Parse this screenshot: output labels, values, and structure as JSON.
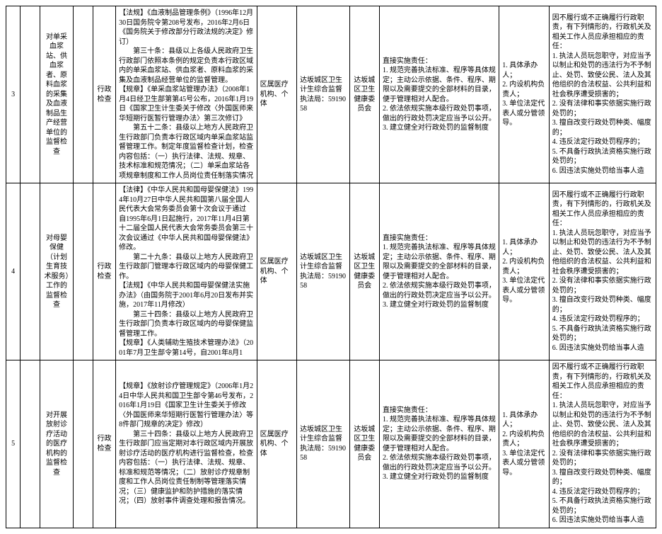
{
  "rows": [
    {
      "idx": "3",
      "colA": "",
      "colB": "对单采血浆站、供血浆者、原料血浆的采集及血液制品生产经营单位的监督检查",
      "colC": "",
      "colD": "行政检查",
      "colE": "【法规】《血液制品管理条例》（1996年12月30日国务院令第208号发布，2016年2月6日《国务院关于修改部分行政法规的决定》修订）\n　　第三十条：县级以上各级人民政府卫生行政部门依照本条例的规定负责本行政区域内的单采血浆站、供血浆者、原料血浆的采集及血液制品经营单位的监督管理。\n【规章】《单采血浆站管理办法》（2008年1月4日经卫生部第第45号公布，2016年1月19日《国家卫生计生委关于修改〈外国医师来华短期行医暂行管理办法〉第三次修订》\n　　第五十二条：县级以上地方人民政府卫生行政部门负责本行政区域内单采血浆站监督管理工作。制定年度监督检查计划，检查内容包括：（一）执行法律、法规、规章、技术标准和规范情况；（二）单采血浆站各项规章制度和工作人员岗位责任制落实情况",
      "colF": "区属医疗机构、个体",
      "colG": "达坂城区卫生计生综合监督执法局：5919058",
      "colH": "达坂城区卫生健康委员会",
      "colI": "直接实施责任：\n1. 规范完善执法标准、程序等具体规定；主动公示依据、条件、程序、期限以及需要提交的全部材料的目录，便于管理相对人配合。\n2. 依法依规实施本级行政处罚事项，做出的行政处罚决定应当予以公开。\n3. 建立健全对行政处罚的监督制度",
      "colJ": "1. 具体承办人；\n2. 内设机构负责人；\n3. 单位法定代表人或分管领导。",
      "colK": "因不履行或不正确履行行政职责，有下列情形的，行政机关及相关工作人员应承担相应的责任：\n1. 执法人员玩忽职守，对应当予以制止和处罚的违法行为不予制止、处罚、致使公民、法人及其他组织的合法权益、公共利益和社会秩序遭受损害的；\n2. 没有法律和事实依据实施行政处罚的；\n3. 擅自改变行政处罚种类、幅度的；\n4. 违反法定行政处罚程序的；\n5. 不具备行政执法资格实施行政处罚的；\n6. 因违法实施处罚给当事人造"
    },
    {
      "idx": "4",
      "colA": "",
      "colB": "对母婴保健（计划生育技术服务）工作的监督检查",
      "colC": "",
      "colD": "行政检查",
      "colE": "【法律】《中华人民共和国母婴保健法》1994年10月27日中华人民共和国第八届全国人民代表大会常务委员会第十次会议于通过 自1995年6月1日起施行，2017年11月4日第十二届全国人民代表大会常务委员会第三十次会议通过《中华人民共和国母婴保健法》修改。\n　　第二十九条：县级以上地方人民政府卫生行政部门管理本行政区域内的母婴保健工作。\n【法规】《中华人民共和国母婴保健法实施办法》（由国务院于2001年6月20日发布并实施，2017年11月修改）\n　　第三十四条：县级以上地方人民政府卫生行政部门负责本行政区域内的母婴保健监督管理工作。\n【规章】《人类辅助生殖技术管理办法》（2001年7月卫生部令第14号，自2001年8月1",
      "colF": "区属医疗机构、个体",
      "colG": "达坂城区卫生计生综合监督执法局：5919058",
      "colH": "达坂城区卫生健康委员会",
      "colI": "直接实施责任：\n1. 规范完善执法标准、程序等具体规定；主动公示依据、条件、程序、期限以及需要提交的全部材料的目录，便于管理相对人配合。\n2. 依法依规实施本级行政处罚事项，做出的行政处罚决定应当予以公开。\n3. 建立健全对行政处罚的监督制度",
      "colJ": "1. 具体承办人；\n2. 内设机构负责人；\n3. 单位法定代表人或分管领导。",
      "colK": "因不履行或不正确履行行政职责，有下列情形的，行政机关及相关工作人员应承担相应的责任：\n1. 执法人员玩忽职守，对应当予以制止和处罚的违法行为不予制止、处罚、致使公民、法人及其他组织的合法权益、公共利益和社会秩序遭受损害的；\n2. 没有法律和事实依据实施行政处罚的；\n3. 擅自改变行政处罚种类、幅度的；\n4. 违反法定行政处罚程序的；\n5. 不具备行政执法资格实施行政处罚的；\n6. 因违法实施处罚给当事人造"
    },
    {
      "idx": "5",
      "colA": "",
      "colB": "对开展放射诊疗活动的医疗机构的监督检查",
      "colC": "",
      "colD": "行政检查",
      "colE": "【规章】《放射诊疗管理规定》（2006年1月24日中华人民共和国卫生部令第46号发布，2016年1月19日《国家卫生计生委关于修改〈外国医师来华短期行医暂行管理办法〉等8件部门规章的决定》修改）\n　　第三十四条：县级以上地方人民政府卫生行政部门应当定期对本行政区域内开展放射诊疗活动的医疗机构进行监督检查，检查内容包括：（一）执行法律、法规、规章、标准和规范等情况；（二）放射诊疗规章制度和工作人员岗位责任制制等管理落实情况；（三）健康监护和防护措施的落实情况；（四）放射事件调查处理和报告情况。",
      "colF": "区属医疗机构、个体",
      "colG": "达坂城区卫生计生综合监督执法局：5919058",
      "colH": "达坂城区卫生健康委员会",
      "colI": "直接实施责任：\n1. 规范完善执法标准、程序等具体规定；主动公示依据、条件、程序、期限以及需要提交的全部材料的目录，便于管理相对人配合。\n2. 依法依规实施本级行政处罚事项，做出的行政处罚决定应当予以公开。\n3. 建立健全对行政处罚的监督制度",
      "colJ": "1. 具体承办人；\n2. 内设机构负责人；\n3. 单位法定代表人或分管领导。",
      "colK": "因不履行或不正确履行行政职责，有下列情形的，行政机关及相关工作人员应承担相应的责任：\n1. 执法人员玩忽职守，对应当予以制止和处罚的违法行为不予制止、处罚、致使公民、法人及其他组织的合法权益、公共利益和社会秩序遭受损害的；\n2. 没有法律和事实依据实施行政处罚的；\n3. 擅自改变行政处罚种类、幅度的；\n4. 违反法定行政处罚程序的；\n5. 不具备行政执法资格实施行政处罚的；\n6. 因违法实施处罚给当事人造"
    }
  ]
}
